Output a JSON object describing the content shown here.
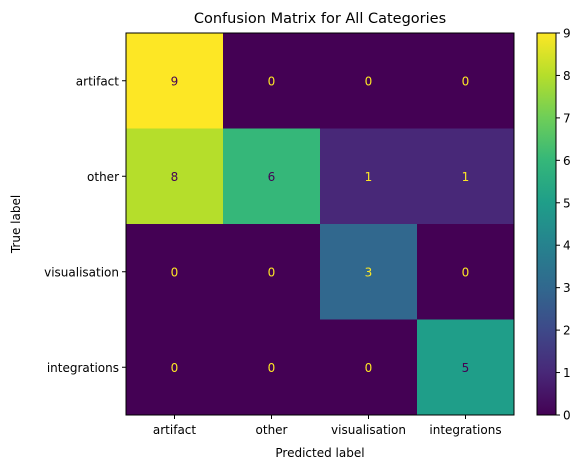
{
  "chart_data": {
    "type": "heatmap",
    "title": "Confusion Matrix for All Categories",
    "xlabel": "Predicted label",
    "ylabel": "True label",
    "x_categories": [
      "artifact",
      "other",
      "visualisation",
      "integrations"
    ],
    "y_categories": [
      "artifact",
      "other",
      "visualisation",
      "integrations"
    ],
    "values": [
      [
        9,
        0,
        0,
        0
      ],
      [
        8,
        6,
        1,
        1
      ],
      [
        0,
        0,
        3,
        0
      ],
      [
        0,
        0,
        0,
        5
      ]
    ],
    "colormap": "viridis",
    "colorbar": {
      "min": 0,
      "max": 9,
      "ticks": [
        "0",
        "1",
        "2",
        "3",
        "4",
        "5",
        "6",
        "7",
        "8",
        "9"
      ]
    }
  }
}
